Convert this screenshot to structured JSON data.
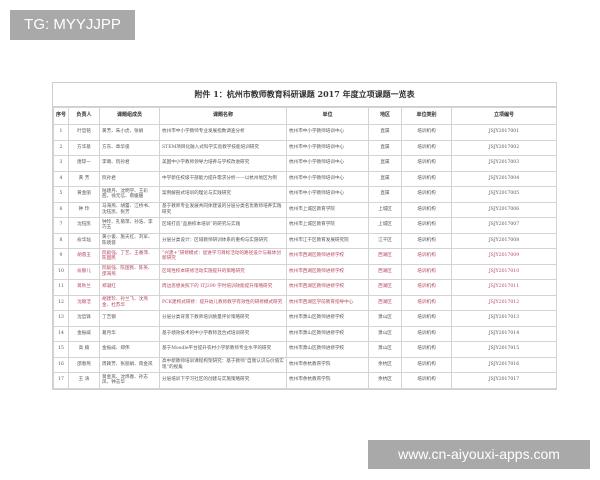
{
  "overlay_label": "TG: MYYJJPP",
  "watermark": "www.cn-aiyouxi-apps.com",
  "document": {
    "title": "附件 1：杭州市教师教育科研课题 2017 年度立项课题一览表",
    "columns": [
      "序号",
      "负责人",
      "课题组成员",
      "课题名称",
      "单位",
      "地区",
      "单位类别",
      "立项编号"
    ],
    "highlight_color": "#b5465e",
    "rows": [
      {
        "highlight": false,
        "cells": [
          "1",
          "叶哲铭",
          "黄芳、朱小虎、张娟",
          "杭州市中小学教师专业发展指数调查分析",
          "杭州市中小学教师培训中心",
          "直属",
          "培训机构",
          "JSJY2017001"
        ]
      },
      {
        "highlight": false,
        "cells": [
          "2",
          "方华基",
          "方东、章华俊",
          "STEM项目化融入式科学实验教学技能培训研究",
          "杭州市中小学教师培训中心",
          "直属",
          "培训机构",
          "JSJY2017002"
        ]
      },
      {
        "highlight": false,
        "cells": [
          "3",
          "唐琼一",
          "李璐、阮孙君",
          "美国中小学教师领导力培养与学校改进研究",
          "杭州市中小学教师培训中心",
          "直属",
          "培训机构",
          "JSJY2017003"
        ]
      },
      {
        "highlight": false,
        "cells": [
          "4",
          "黄 芳",
          "阮孙君",
          "中学新任校级干部能力提升需求分析——以杭州地区为例",
          "杭州市中小学教师培训中心",
          "直属",
          "培训机构",
          "JSJY2017004"
        ]
      },
      {
        "highlight": false,
        "cells": [
          "5",
          "黄金丽",
          "陆建丹、沈明学、王彩茜、徐元信、蔡媛媛",
          "案例解剖式培训的理论与实践研究",
          "杭州市中小学教师培训中心",
          "直属",
          "培训机构",
          "JSJY2017005"
        ]
      },
      {
        "highlight": false,
        "cells": [
          "6",
          "钟 玲",
          "马海燕、胡蕾、江桥书、沈钰凯、张芳",
          "基于教师专业发展共同体建设的分层分类名优教师培养实践研究",
          "杭州市上城区教育学院",
          "上城区",
          "培训机构",
          "JSJY2017006"
        ]
      },
      {
        "highlight": false,
        "cells": [
          "7",
          "沈钰凯",
          "钟玲、孔菊萍、孙浩、李巧玉",
          "区域打造“品质校本培训”的研究与实践",
          "杭州市上城区教育学院",
          "上城区",
          "培训机构",
          "JSJY2017007"
        ]
      },
      {
        "highlight": false,
        "cells": [
          "8",
          "俞华灿",
          "黄小俊、施天红、刘军、陈晓蓉",
          "分层分类设计：区域教师研训体系的重构与实施研究",
          "杭州市江干区教育发展研究院",
          "江干区",
          "培训机构",
          "JSJY2017008"
        ]
      },
      {
        "highlight": true,
        "cells": [
          "9",
          "胡蓉玉",
          "阮毅强、丁艺、王番萍、陈国民",
          "“兴建+”研修模式：促进学习目标活动的路径设计与载体创新研究",
          "杭州市西湖区教师进修学校",
          "西湖区",
          "培训机构",
          "JSJY2017009"
        ]
      },
      {
        "highlight": true,
        "cells": [
          "10",
          "俞静儿",
          "阮毅强、陈国民、陈英、邵海燕",
          "区域性校本研修活动实施提升的策略研究",
          "杭州市西湖区教师进修学校",
          "西湖区",
          "培训机构",
          "JSJY2017010"
        ]
      },
      {
        "highlight": true,
        "cells": [
          "11",
          "蒋秋兰",
          "郑凝红",
          "周边思想关照下的 ITJ290 学时培训效能提升策略研究",
          "杭州市西湖区教师进修学校",
          "西湖区",
          "培训机构",
          "JSJY2017011"
        ]
      },
      {
        "highlight": true,
        "cells": [
          "12",
          "沈颖洁",
          "胡建珍、孙兰飞、沈燕金、杜苏华",
          "PCK建构式研修：提升幼儿教师教学有效性的研修模式研究",
          "杭州市西湖区学前教育指导中心",
          "西湖区",
          "培训机构",
          "JSJY2017012"
        ]
      },
      {
        "highlight": false,
        "cells": [
          "13",
          "沈哲锋",
          "丁吉钢",
          "分层分类背景下教师培训质量评价策略研究",
          "杭州市萧山区教师进修学校",
          "萧山区",
          "培训机构",
          "JSJY2017013"
        ]
      },
      {
        "highlight": false,
        "cells": [
          "14",
          "金振威",
          "葛月华",
          "基于绩效技术的中小学教师混合式培训研究",
          "杭州市萧山区教师进修学校",
          "萧山区",
          "培训机构",
          "JSJY2017014"
        ]
      },
      {
        "highlight": false,
        "cells": [
          "15",
          "高 楠",
          "金振威、郑伟",
          "基于Moodle平台提升农村小学新教师专业水平的研究",
          "杭州市萧山区教师进修学校",
          "萧山区",
          "培训机构",
          "JSJY2017015"
        ]
      },
      {
        "highlight": false,
        "cells": [
          "16",
          "邵春燕",
          "周颖芳、张丽娟、蒋金岚",
          "高中新教师培训课程构架研究：基于教师“自我认识与价值实现”的视角",
          "杭州市余杭教育学院",
          "余杭区",
          "培训机构",
          "JSJY2017016"
        ]
      },
      {
        "highlight": false,
        "cells": [
          "17",
          "王 涛",
          "蒋金岚、沈炜春、孙志凤、钟志华",
          "分层培训下学习社区的创建与实施策略研究",
          "杭州市余杭教育学院",
          "余杭区",
          "培训机构",
          "JSJY2017017"
        ]
      }
    ]
  }
}
